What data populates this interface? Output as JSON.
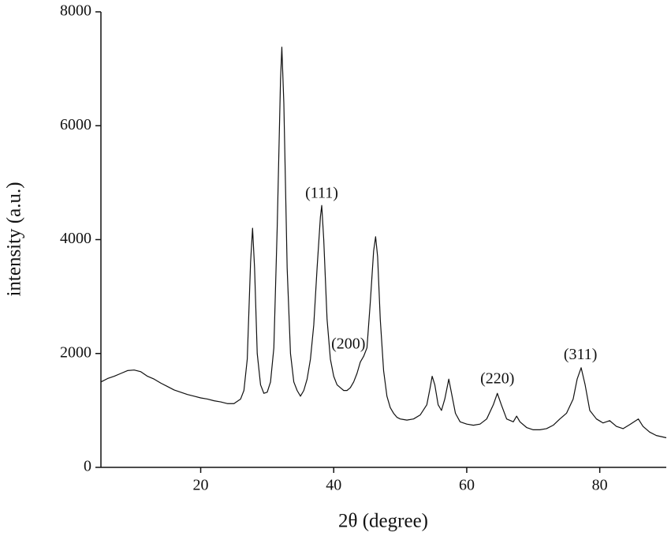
{
  "chart_data": {
    "type": "line",
    "xlabel": "2θ (degree)",
    "ylabel": "intensity (a.u.)",
    "xlim": [
      5,
      90
    ],
    "ylim": [
      0,
      8000
    ],
    "xticks": [
      20,
      40,
      60,
      80
    ],
    "yticks": [
      0,
      2000,
      4000,
      6000,
      8000
    ],
    "grid": false,
    "color": "#111111",
    "x": [
      5,
      6,
      7,
      8,
      9,
      10,
      11,
      12,
      13,
      14,
      15,
      16,
      17,
      18,
      19,
      20,
      21,
      22,
      23,
      24,
      25,
      26,
      26.5,
      27,
      27.5,
      27.8,
      28.1,
      28.5,
      29,
      29.5,
      30,
      30.5,
      31,
      31.5,
      32,
      32.2,
      32.5,
      33,
      33.5,
      34,
      34.5,
      35,
      35.5,
      36,
      36.5,
      37,
      37.5,
      38,
      38.2,
      38.5,
      39,
      39.5,
      40,
      40.5,
      41,
      41.5,
      42,
      42.5,
      43,
      43.5,
      44,
      44.5,
      45,
      45.5,
      46,
      46.3,
      46.6,
      47,
      47.5,
      48,
      48.5,
      49,
      49.5,
      50,
      51,
      52,
      53,
      54,
      54.5,
      54.8,
      55.2,
      55.7,
      56.2,
      56.7,
      57.3,
      57.8,
      58.3,
      59,
      60,
      61,
      62,
      63,
      64,
      64.6,
      65.2,
      66,
      67,
      67.5,
      68,
      69,
      70,
      71,
      72,
      73,
      74,
      75,
      76,
      76.6,
      77.2,
      77.8,
      78.5,
      79.5,
      80.5,
      81.5,
      82.5,
      83.5,
      84.5,
      85.8,
      86.5,
      87.5,
      88.5,
      90
    ],
    "values": [
      1500,
      1560,
      1600,
      1650,
      1700,
      1710,
      1680,
      1600,
      1550,
      1480,
      1420,
      1360,
      1320,
      1280,
      1250,
      1220,
      1200,
      1170,
      1150,
      1120,
      1120,
      1200,
      1350,
      1900,
      3600,
      4200,
      3500,
      2000,
      1450,
      1300,
      1320,
      1500,
      2100,
      4200,
      6800,
      7380,
      6400,
      3500,
      2000,
      1500,
      1350,
      1250,
      1350,
      1550,
      1900,
      2500,
      3500,
      4400,
      4600,
      4000,
      2600,
      1900,
      1600,
      1450,
      1400,
      1350,
      1350,
      1400,
      1500,
      1650,
      1850,
      1950,
      2100,
      2900,
      3800,
      4050,
      3700,
      2600,
      1700,
      1250,
      1050,
      950,
      880,
      850,
      830,
      850,
      920,
      1100,
      1400,
      1600,
      1450,
      1100,
      1000,
      1200,
      1550,
      1250,
      950,
      800,
      760,
      740,
      760,
      850,
      1100,
      1300,
      1100,
      850,
      800,
      900,
      800,
      700,
      660,
      660,
      680,
      740,
      850,
      950,
      1200,
      1550,
      1750,
      1450,
      1000,
      850,
      780,
      820,
      720,
      680,
      750,
      850,
      720,
      620,
      560,
      520
    ],
    "annotations": [
      {
        "text": "(111)",
        "x": 38.2,
        "y": 4800
      },
      {
        "text": "(200)",
        "x": 42.2,
        "y": 2150
      },
      {
        "text": "(220)",
        "x": 64.6,
        "y": 1540
      },
      {
        "text": "(311)",
        "x": 77.1,
        "y": 1960
      }
    ]
  }
}
